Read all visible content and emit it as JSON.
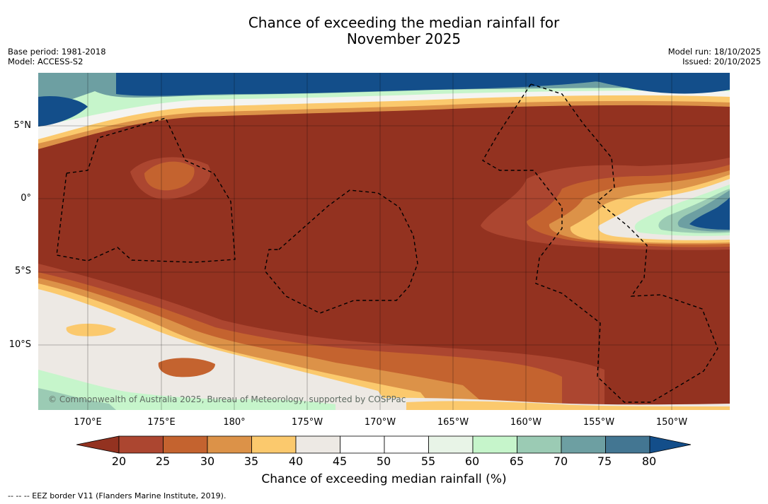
{
  "title_line1": "Chance of exceeding the median rainfall for",
  "title_line2": "November 2025",
  "meta_left": {
    "base_period": "Base period: 1981-2018",
    "model": "Model: ACCESS-S2"
  },
  "meta_right": {
    "model_run": "Model run: 18/10/2025",
    "issued": "Issued: 20/10/2025"
  },
  "latitude_labels": [
    "5°N",
    "0°",
    "5°S",
    "10°S"
  ],
  "longitude_labels": [
    "170°E",
    "175°E",
    "180°",
    "175°W",
    "170°W",
    "165°W",
    "160°W",
    "155°W",
    "150°W"
  ],
  "copyright": "© Commonwealth of Australia 2025, Bureau of Meteorology, supported by COSPPac",
  "colorbar": {
    "label": "Chance of exceeding median rainfall (%)",
    "ticks": [
      "20",
      "25",
      "30",
      "35",
      "40",
      "45",
      "50",
      "55",
      "60",
      "65",
      "70",
      "75",
      "80"
    ],
    "colors": [
      "#ac4630",
      "#c4632f",
      "#dc9248",
      "#fbc96d",
      "#ede9e4",
      "#ffffff",
      "#ffffff",
      "#e8f4e7",
      "#c6f5cb",
      "#9bcbb4",
      "#6d9fa2",
      "#437692"
    ],
    "under_color": "#933220",
    "over_color": "#134e8a"
  },
  "footer": "--  --  -- EEZ border V11 (Flanders Marine Institute, 2019).",
  "colors": {
    "background": "#933220",
    "deep_blue": "#134e8a"
  }
}
